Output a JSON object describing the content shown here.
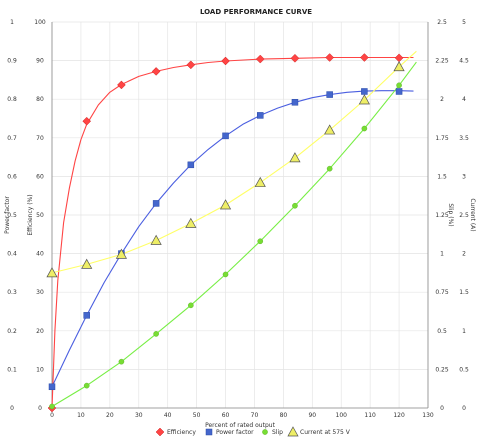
{
  "chart_data": {
    "type": "line",
    "title": "LOAD PERFORMANCE CURVE",
    "xlabel": "Percent of rated output",
    "x_ticks": [
      0,
      10,
      20,
      30,
      40,
      50,
      60,
      70,
      80,
      90,
      100,
      110,
      120,
      130
    ],
    "xlim": [
      0,
      130
    ],
    "grid": true,
    "legend_position": "bottom",
    "axes": {
      "left_outer": {
        "label": "Power factor",
        "ticks": [
          "0",
          "0.1",
          "0.2",
          "0.3",
          "0.4",
          "0.5",
          "0.6",
          "0.7",
          "0.8",
          "0.9",
          "1"
        ]
      },
      "left_inner": {
        "label": "Efficiency (%)",
        "ticks": [
          "0",
          "10",
          "20",
          "30",
          "40",
          "50",
          "60",
          "70",
          "80",
          "90",
          "100"
        ]
      },
      "right_inner": {
        "label": "Slip (%)",
        "ticks": [
          "0",
          "0.25",
          "0.5",
          "0.75",
          "1",
          "1.25",
          "1.5",
          "1.75",
          "2",
          "2.25",
          "2.5"
        ]
      },
      "right_outer": {
        "label": "Current (A)",
        "ticks": [
          "0",
          "0.5",
          "1",
          "1.5",
          "2",
          "2.5",
          "3",
          "3.5",
          "4",
          "4.5",
          "5"
        ]
      }
    },
    "series": [
      {
        "name": "Efficiency",
        "axis": "left_inner",
        "color": "#ff4444",
        "line_color": "#ff4444",
        "marker": "diamond",
        "points": [
          [
            0,
            0
          ],
          [
            12,
            74.3
          ],
          [
            24,
            83.7
          ],
          [
            36,
            87.2
          ],
          [
            48,
            88.9
          ],
          [
            60,
            89.9
          ],
          [
            72,
            90.4
          ],
          [
            84,
            90.6
          ],
          [
            96,
            90.8
          ],
          [
            108,
            90.8
          ],
          [
            120,
            90.7
          ]
        ],
        "curve": [
          [
            0,
            0
          ],
          [
            1,
            20
          ],
          [
            2,
            33
          ],
          [
            4,
            48
          ],
          [
            6,
            57
          ],
          [
            8,
            64
          ],
          [
            10,
            69.5
          ],
          [
            12,
            73.5
          ],
          [
            16,
            78.5
          ],
          [
            20,
            81.8
          ],
          [
            24,
            83.8
          ],
          [
            30,
            85.9
          ],
          [
            36,
            87.2
          ],
          [
            42,
            88.2
          ],
          [
            48,
            88.9
          ],
          [
            54,
            89.5
          ],
          [
            60,
            89.9
          ],
          [
            72,
            90.4
          ],
          [
            84,
            90.6
          ],
          [
            96,
            90.8
          ],
          [
            108,
            90.8
          ],
          [
            120,
            90.8
          ],
          [
            125,
            90.8
          ]
        ]
      },
      {
        "name": "Power factor",
        "axis": "left_outer",
        "color": "#4466cc",
        "line_color": "#4a5ee0",
        "marker": "square",
        "points": [
          [
            0,
            0.055
          ],
          [
            12,
            0.24
          ],
          [
            24,
            0.4
          ],
          [
            36,
            0.53
          ],
          [
            48,
            0.63
          ],
          [
            60,
            0.705
          ],
          [
            72,
            0.758
          ],
          [
            84,
            0.792
          ],
          [
            96,
            0.812
          ],
          [
            108,
            0.82
          ],
          [
            120,
            0.82
          ]
        ],
        "curve": [
          [
            0,
            0.055
          ],
          [
            6,
            0.15
          ],
          [
            12,
            0.24
          ],
          [
            18,
            0.325
          ],
          [
            24,
            0.4
          ],
          [
            30,
            0.47
          ],
          [
            36,
            0.53
          ],
          [
            42,
            0.583
          ],
          [
            48,
            0.63
          ],
          [
            54,
            0.67
          ],
          [
            60,
            0.705
          ],
          [
            66,
            0.735
          ],
          [
            72,
            0.758
          ],
          [
            78,
            0.777
          ],
          [
            84,
            0.792
          ],
          [
            90,
            0.804
          ],
          [
            96,
            0.812
          ],
          [
            102,
            0.818
          ],
          [
            108,
            0.821
          ],
          [
            114,
            0.822
          ],
          [
            120,
            0.822
          ],
          [
            125,
            0.821
          ]
        ]
      },
      {
        "name": "Slip",
        "axis": "right_inner",
        "color": "#77dd33",
        "line_color": "#77ee44",
        "marker": "circle",
        "points": [
          [
            0,
            0.01
          ],
          [
            12,
            0.145
          ],
          [
            24,
            0.3
          ],
          [
            36,
            0.48
          ],
          [
            48,
            0.665
          ],
          [
            60,
            0.865
          ],
          [
            72,
            1.08
          ],
          [
            84,
            1.31
          ],
          [
            96,
            1.55
          ],
          [
            108,
            1.81
          ],
          [
            120,
            2.09
          ]
        ],
        "curve": [
          [
            0,
            0.01
          ],
          [
            12,
            0.145
          ],
          [
            24,
            0.3
          ],
          [
            36,
            0.48
          ],
          [
            48,
            0.665
          ],
          [
            60,
            0.865
          ],
          [
            72,
            1.08
          ],
          [
            84,
            1.31
          ],
          [
            96,
            1.55
          ],
          [
            108,
            1.81
          ],
          [
            120,
            2.09
          ],
          [
            126,
            2.24
          ]
        ]
      },
      {
        "name": "Current at 575 V",
        "axis": "right_outer",
        "color": "#eeee66",
        "line_color": "#ffff66",
        "marker": "triangle",
        "points": [
          [
            0,
            1.75
          ],
          [
            12,
            1.86
          ],
          [
            24,
            1.99
          ],
          [
            36,
            2.17
          ],
          [
            48,
            2.39
          ],
          [
            60,
            2.63
          ],
          [
            72,
            2.92
          ],
          [
            84,
            3.24
          ],
          [
            96,
            3.6
          ],
          [
            108,
            3.99
          ],
          [
            120,
            4.42
          ]
        ],
        "curve": [
          [
            0,
            1.75
          ],
          [
            12,
            1.86
          ],
          [
            24,
            1.99
          ],
          [
            36,
            2.17
          ],
          [
            48,
            2.39
          ],
          [
            60,
            2.63
          ],
          [
            72,
            2.92
          ],
          [
            84,
            3.24
          ],
          [
            96,
            3.6
          ],
          [
            108,
            3.99
          ],
          [
            120,
            4.42
          ],
          [
            126,
            4.62
          ]
        ]
      }
    ]
  }
}
